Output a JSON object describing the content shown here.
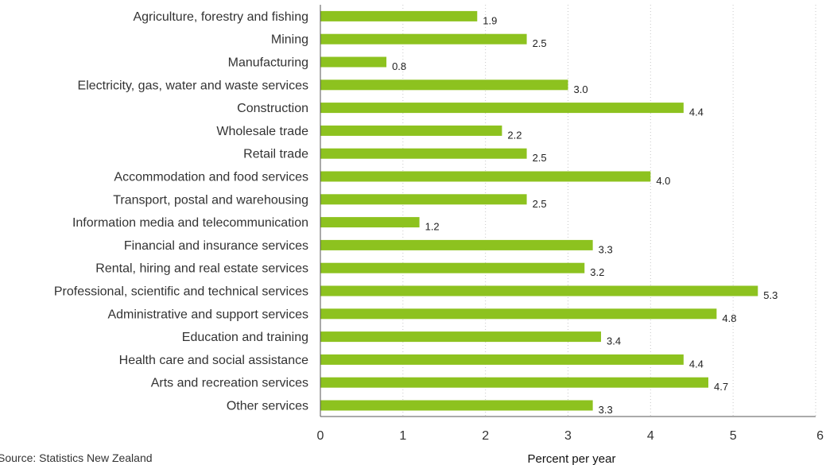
{
  "chart_data": {
    "type": "bar",
    "orientation": "horizontal",
    "categories": [
      "Agriculture, forestry and fishing",
      "Mining",
      "Manufacturing",
      "Electricity, gas, water and waste services",
      "Construction",
      "Wholesale trade",
      "Retail trade",
      "Accommodation and food services",
      "Transport, postal and warehousing",
      "Information media and telecommunication",
      "Financial and insurance services",
      "Rental, hiring and real estate services",
      "Professional, scientific and technical services",
      "Administrative and support services",
      "Education and training",
      "Health care and social assistance",
      "Arts and recreation services",
      "Other services"
    ],
    "values": [
      1.9,
      2.5,
      0.8,
      3.0,
      4.4,
      2.2,
      2.5,
      4.0,
      2.5,
      1.2,
      3.3,
      3.2,
      5.3,
      4.8,
      3.4,
      4.4,
      4.7,
      3.3
    ],
    "value_labels": [
      "1.9",
      "2.5",
      "0.8",
      "3.0",
      "4.4",
      "2.2",
      "2.5",
      "4.0",
      "2.5",
      "1.2",
      "3.3",
      "3.2",
      "5.3",
      "4.8",
      "3.4",
      "4.4",
      "4.7",
      "3.3"
    ],
    "title": "",
    "xlabel": "Percent per year",
    "ylabel": "",
    "xlim": [
      0,
      6
    ],
    "xticks": [
      "0",
      "1",
      "2",
      "3",
      "4",
      "5",
      "6"
    ],
    "grid": "vertical dotted",
    "bar_color": "#8dc21f",
    "source": "Source: Statistics New Zealand"
  }
}
